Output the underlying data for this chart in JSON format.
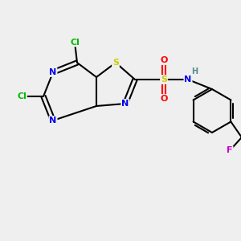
{
  "background_color": "#efefef",
  "bond_color": "#000000",
  "atom_colors": {
    "N": "#0000ee",
    "S_thiazole": "#cccc00",
    "S_sulfonyl": "#cccc00",
    "Cl": "#00bb00",
    "F": "#cc00cc",
    "O": "#ff0000",
    "H": "#5a8a8a",
    "C": "#000000"
  },
  "figsize": [
    3.0,
    3.0
  ],
  "dpi": 100
}
